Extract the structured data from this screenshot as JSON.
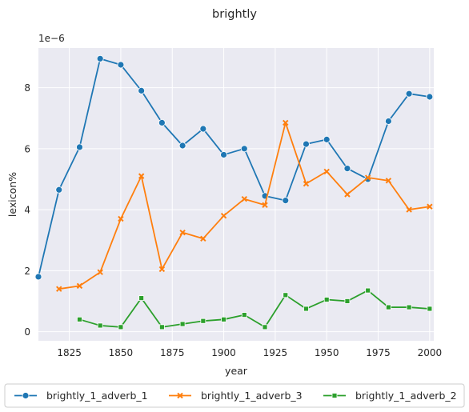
{
  "chart_data": {
    "type": "line",
    "title": "brightly",
    "xlabel": "year",
    "ylabel": "lexicon%",
    "y_offset_label": "1e−6",
    "xlim": [
      1810,
      2002
    ],
    "ylim": [
      -0.3,
      9.3
    ],
    "xticks": [
      1825,
      1850,
      1875,
      1900,
      1925,
      1950,
      1975,
      2000
    ],
    "yticks": [
      0,
      2,
      4,
      6,
      8
    ],
    "grid": true,
    "legend_placement": "bottom",
    "series": [
      {
        "name": "brightly_1_adverb_1",
        "color": "#1f77b4",
        "marker": "circle",
        "x": [
          1810,
          1820,
          1830,
          1840,
          1850,
          1860,
          1870,
          1880,
          1890,
          1900,
          1910,
          1920,
          1930,
          1940,
          1950,
          1960,
          1970,
          1980,
          1990,
          2000
        ],
        "y": [
          1.8,
          4.65,
          6.05,
          8.95,
          8.75,
          7.9,
          6.85,
          6.1,
          6.65,
          5.8,
          6.0,
          4.45,
          4.3,
          6.15,
          6.3,
          5.35,
          5.0,
          6.9,
          7.8,
          7.7
        ]
      },
      {
        "name": "brightly_1_adverb_3",
        "color": "#ff7f0e",
        "marker": "x",
        "x": [
          1820,
          1830,
          1840,
          1850,
          1860,
          1870,
          1880,
          1890,
          1900,
          1910,
          1920,
          1930,
          1940,
          1950,
          1960,
          1970,
          1980,
          1990,
          2000
        ],
        "y": [
          1.4,
          1.5,
          1.95,
          3.7,
          5.1,
          2.05,
          3.25,
          3.05,
          3.8,
          4.35,
          4.15,
          6.85,
          4.85,
          5.25,
          4.5,
          5.05,
          4.95,
          4.0,
          4.1
        ]
      },
      {
        "name": "brightly_1_adverb_2",
        "color": "#2ca02c",
        "marker": "square",
        "x": [
          1830,
          1840,
          1850,
          1860,
          1870,
          1880,
          1890,
          1900,
          1910,
          1920,
          1930,
          1940,
          1950,
          1960,
          1970,
          1980,
          1990,
          2000
        ],
        "y": [
          0.4,
          0.2,
          0.15,
          1.1,
          0.15,
          0.25,
          0.35,
          0.4,
          0.55,
          0.15,
          1.2,
          0.75,
          1.05,
          1.0,
          1.35,
          0.8,
          0.8,
          0.75
        ]
      }
    ]
  }
}
